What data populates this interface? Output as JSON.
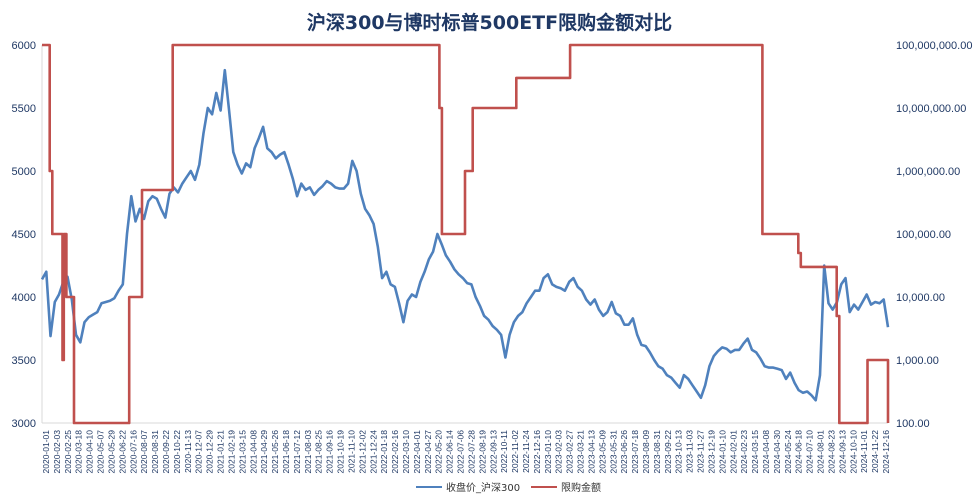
{
  "chart_data": {
    "type": "line",
    "title": "沪深300与博时标普500ETF限购金额对比",
    "x_ticks": [
      "2020-01-01",
      "2020-02-03",
      "2020-02-25",
      "2020-03-18",
      "2020-04-10",
      "2020-05-07",
      "2020-05-29",
      "2020-06-22",
      "2020-07-16",
      "2020-08-07",
      "2020-08-31",
      "2020-09-22",
      "2020-10-22",
      "2020-11-13",
      "2020-12-07",
      "2020-12-29",
      "2021-01-21",
      "2021-02-19",
      "2021-03-15",
      "2021-04-08",
      "2021-04-29",
      "2021-05-26",
      "2021-06-18",
      "2021-07-12",
      "2021-08-03",
      "2021-08-25",
      "2021-09-16",
      "2021-10-19",
      "2021-11-10",
      "2021-12-02",
      "2021-12-24",
      "2022-01-18",
      "2022-02-16",
      "2022-03-10",
      "2022-04-01",
      "2022-04-27",
      "2022-05-20",
      "2022-06-14",
      "2022-07-06",
      "2022-07-28",
      "2022-08-19",
      "2022-09-13",
      "2022-10-11",
      "2022-11-02",
      "2022-11-24",
      "2022-12-16",
      "2023-01-10",
      "2023-02-03",
      "2023-02-27",
      "2023-03-21",
      "2023-04-13",
      "2023-05-09",
      "2023-05-31",
      "2023-06-26",
      "2023-07-18",
      "2023-08-09",
      "2023-08-31",
      "2023-09-22",
      "2023-10-13",
      "2023-11-03",
      "2023-11-27",
      "2023-12-19",
      "2024-01-10",
      "2024-02-01",
      "2024-02-23",
      "2024-03-15",
      "2024-04-08",
      "2024-04-30",
      "2024-05-24",
      "2024-06-18",
      "2024-07-10",
      "2024-08-01",
      "2024-08-23",
      "2024-09-13",
      "2024-10-10",
      "2024-11-01",
      "2024-11-22",
      "2024-12-16"
    ],
    "y_left": {
      "range": [
        3000,
        6000
      ],
      "ticks": [
        "3000",
        "3500",
        "4000",
        "4500",
        "5000",
        "5500",
        "6000"
      ]
    },
    "y_right": {
      "scale": "log",
      "range": [
        100,
        100000000
      ],
      "ticks": [
        "100.00",
        "1,000.00",
        "10,000.00",
        "100,000.00",
        "1,000,000.00",
        "10,000,000.00",
        "100,000,000.00"
      ]
    },
    "series": [
      {
        "name": "收盘价_沪深300",
        "axis": "left",
        "color": "#4f81bd",
        "points": [
          [
            0,
            4140
          ],
          [
            1,
            4200
          ],
          [
            2,
            3690
          ],
          [
            3,
            3960
          ],
          [
            4,
            4020
          ],
          [
            5,
            4120
          ],
          [
            6,
            4160
          ],
          [
            7,
            3980
          ],
          [
            8,
            3700
          ],
          [
            9,
            3640
          ],
          [
            10,
            3800
          ],
          [
            11,
            3840
          ],
          [
            12,
            3860
          ],
          [
            13,
            3880
          ],
          [
            14,
            3950
          ],
          [
            15,
            3960
          ],
          [
            16,
            3970
          ],
          [
            17,
            3990
          ],
          [
            18,
            4050
          ],
          [
            19,
            4100
          ],
          [
            20,
            4500
          ],
          [
            21,
            4800
          ],
          [
            22,
            4600
          ],
          [
            23,
            4700
          ],
          [
            24,
            4620
          ],
          [
            25,
            4760
          ],
          [
            26,
            4800
          ],
          [
            27,
            4780
          ],
          [
            28,
            4700
          ],
          [
            29,
            4630
          ],
          [
            30,
            4820
          ],
          [
            31,
            4870
          ],
          [
            32,
            4830
          ],
          [
            33,
            4900
          ],
          [
            34,
            4950
          ],
          [
            35,
            5000
          ],
          [
            36,
            4930
          ],
          [
            37,
            5050
          ],
          [
            38,
            5300
          ],
          [
            39,
            5500
          ],
          [
            40,
            5450
          ],
          [
            41,
            5620
          ],
          [
            42,
            5480
          ],
          [
            43,
            5800
          ],
          [
            44,
            5480
          ],
          [
            45,
            5150
          ],
          [
            46,
            5050
          ],
          [
            47,
            4980
          ],
          [
            48,
            5060
          ],
          [
            49,
            5030
          ],
          [
            50,
            5180
          ],
          [
            51,
            5260
          ],
          [
            52,
            5350
          ],
          [
            53,
            5180
          ],
          [
            54,
            5150
          ],
          [
            55,
            5100
          ],
          [
            56,
            5130
          ],
          [
            57,
            5150
          ],
          [
            58,
            5050
          ],
          [
            59,
            4940
          ],
          [
            60,
            4800
          ],
          [
            61,
            4900
          ],
          [
            62,
            4850
          ],
          [
            63,
            4870
          ],
          [
            64,
            4810
          ],
          [
            65,
            4850
          ],
          [
            66,
            4880
          ],
          [
            67,
            4920
          ],
          [
            68,
            4900
          ],
          [
            69,
            4870
          ],
          [
            70,
            4860
          ],
          [
            71,
            4860
          ],
          [
            72,
            4900
          ],
          [
            73,
            5080
          ],
          [
            74,
            5000
          ],
          [
            75,
            4820
          ],
          [
            76,
            4700
          ],
          [
            77,
            4650
          ],
          [
            78,
            4580
          ],
          [
            79,
            4400
          ],
          [
            80,
            4150
          ],
          [
            81,
            4200
          ],
          [
            82,
            4100
          ],
          [
            83,
            4080
          ],
          [
            84,
            3950
          ],
          [
            85,
            3800
          ],
          [
            86,
            3970
          ],
          [
            87,
            4020
          ],
          [
            88,
            4000
          ],
          [
            89,
            4120
          ],
          [
            90,
            4200
          ],
          [
            91,
            4300
          ],
          [
            92,
            4360
          ],
          [
            93,
            4500
          ],
          [
            94,
            4420
          ],
          [
            95,
            4330
          ],
          [
            96,
            4280
          ],
          [
            97,
            4220
          ],
          [
            98,
            4180
          ],
          [
            99,
            4150
          ],
          [
            100,
            4110
          ],
          [
            101,
            4100
          ],
          [
            102,
            4000
          ],
          [
            103,
            3930
          ],
          [
            104,
            3850
          ],
          [
            105,
            3820
          ],
          [
            106,
            3770
          ],
          [
            107,
            3740
          ],
          [
            108,
            3700
          ],
          [
            109,
            3520
          ],
          [
            110,
            3700
          ],
          [
            111,
            3800
          ],
          [
            112,
            3850
          ],
          [
            113,
            3880
          ],
          [
            114,
            3950
          ],
          [
            115,
            4000
          ],
          [
            116,
            4050
          ],
          [
            117,
            4050
          ],
          [
            118,
            4150
          ],
          [
            119,
            4180
          ],
          [
            120,
            4100
          ],
          [
            121,
            4080
          ],
          [
            122,
            4070
          ],
          [
            123,
            4050
          ],
          [
            124,
            4120
          ],
          [
            125,
            4150
          ],
          [
            126,
            4080
          ],
          [
            127,
            4050
          ],
          [
            128,
            3980
          ],
          [
            129,
            3940
          ],
          [
            130,
            3980
          ],
          [
            131,
            3900
          ],
          [
            132,
            3850
          ],
          [
            133,
            3880
          ],
          [
            134,
            3960
          ],
          [
            135,
            3870
          ],
          [
            136,
            3850
          ],
          [
            137,
            3780
          ],
          [
            138,
            3780
          ],
          [
            139,
            3830
          ],
          [
            140,
            3700
          ],
          [
            141,
            3620
          ],
          [
            142,
            3610
          ],
          [
            143,
            3560
          ],
          [
            144,
            3500
          ],
          [
            145,
            3450
          ],
          [
            146,
            3430
          ],
          [
            147,
            3380
          ],
          [
            148,
            3360
          ],
          [
            149,
            3320
          ],
          [
            150,
            3280
          ],
          [
            151,
            3380
          ],
          [
            152,
            3350
          ],
          [
            153,
            3300
          ],
          [
            154,
            3250
          ],
          [
            155,
            3200
          ],
          [
            156,
            3300
          ],
          [
            157,
            3450
          ],
          [
            158,
            3530
          ],
          [
            159,
            3570
          ],
          [
            160,
            3600
          ],
          [
            161,
            3590
          ],
          [
            162,
            3560
          ],
          [
            163,
            3580
          ],
          [
            164,
            3580
          ],
          [
            165,
            3630
          ],
          [
            166,
            3670
          ],
          [
            167,
            3580
          ],
          [
            168,
            3560
          ],
          [
            169,
            3510
          ],
          [
            170,
            3450
          ],
          [
            171,
            3440
          ],
          [
            172,
            3440
          ],
          [
            173,
            3430
          ],
          [
            174,
            3420
          ],
          [
            175,
            3350
          ],
          [
            176,
            3400
          ],
          [
            177,
            3320
          ],
          [
            178,
            3260
          ],
          [
            179,
            3240
          ],
          [
            180,
            3250
          ],
          [
            181,
            3220
          ],
          [
            182,
            3180
          ],
          [
            183,
            3380
          ],
          [
            184,
            4250
          ],
          [
            185,
            3950
          ],
          [
            186,
            3900
          ],
          [
            187,
            3960
          ],
          [
            188,
            4100
          ],
          [
            189,
            4150
          ],
          [
            190,
            3880
          ],
          [
            191,
            3940
          ],
          [
            192,
            3900
          ],
          [
            193,
            3960
          ],
          [
            194,
            4020
          ],
          [
            195,
            3940
          ],
          [
            196,
            3960
          ],
          [
            197,
            3950
          ],
          [
            198,
            3980
          ],
          [
            199,
            3760
          ]
        ]
      },
      {
        "name": "限购金额",
        "axis": "right",
        "color": "#c0504d",
        "points": [
          [
            0,
            100000000
          ],
          [
            3,
            100000000
          ],
          [
            3,
            1000000
          ],
          [
            4,
            1000000
          ],
          [
            4,
            100000
          ],
          [
            8,
            100000
          ],
          [
            8,
            1000
          ],
          [
            8.5,
            1000
          ],
          [
            8.5,
            100000
          ],
          [
            9.5,
            100000
          ],
          [
            9.5,
            10000
          ],
          [
            12.5,
            10000
          ],
          [
            12.5,
            100
          ],
          [
            34,
            100
          ],
          [
            34,
            10000
          ],
          [
            39,
            10000
          ],
          [
            39,
            500000
          ],
          [
            51,
            500000
          ],
          [
            51,
            100000000
          ],
          [
            155,
            100000000
          ],
          [
            155,
            10000000
          ],
          [
            156,
            10000000
          ],
          [
            156,
            100000
          ],
          [
            165,
            100000
          ],
          [
            165,
            1000000
          ],
          [
            168,
            1000000
          ],
          [
            168,
            10000000
          ],
          [
            185,
            10000000
          ],
          [
            185,
            30000000
          ],
          [
            206,
            30000000
          ],
          [
            206,
            100000000
          ],
          [
            281,
            100000000
          ],
          [
            281,
            100000
          ],
          [
            295,
            100000
          ],
          [
            295,
            50000
          ],
          [
            296,
            50000
          ],
          [
            296,
            30000
          ],
          [
            310,
            30000
          ],
          [
            310,
            5000
          ],
          [
            311,
            5000
          ],
          [
            311,
            100
          ],
          [
            322,
            100
          ],
          [
            322,
            1000
          ],
          [
            330,
            1000
          ],
          [
            330,
            100
          ]
        ]
      }
    ],
    "x_domain": [
      0,
      330
    ]
  },
  "legend": {
    "series1_label": "收盘价_沪深300",
    "series2_label": "限购金额"
  }
}
